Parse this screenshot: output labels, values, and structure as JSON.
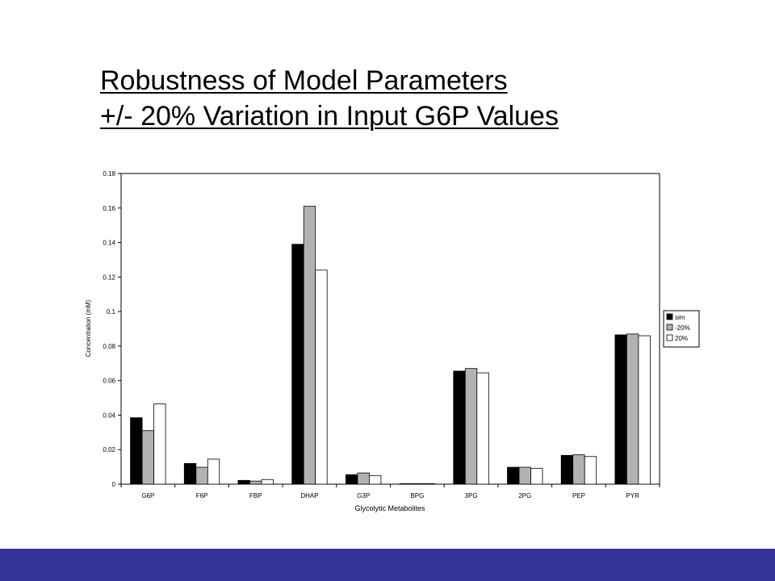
{
  "slide": {
    "title_line1": "Robustness of Model Parameters",
    "title_line2": "+/- 20% Variation in Input G6P Values",
    "footer_color": "#333399"
  },
  "chart_data": {
    "type": "bar",
    "title": "",
    "xlabel": "Glycolytic Metabolites",
    "ylabel": "Concentration (mM)",
    "ylim": [
      0,
      0.18
    ],
    "yticks": [
      "0",
      "0.02",
      "0.04",
      "0.06",
      "0.08",
      "0.1",
      "0.12",
      "0.14",
      "0.16",
      "0.18"
    ],
    "categories": [
      "G6P",
      "F6P",
      "FBP",
      "DHAP",
      "G3P",
      "BPG",
      "3PG",
      "2PG",
      "PEP",
      "PYR"
    ],
    "series": [
      {
        "name": "sim",
        "color": "#000000",
        "values": [
          0.0385,
          0.012,
          0.0022,
          0.139,
          0.0055,
          0.0003,
          0.0655,
          0.0098,
          0.0167,
          0.0865
        ]
      },
      {
        "name": "-20%",
        "color": "#b2b2b2",
        "values": [
          0.031,
          0.0098,
          0.0018,
          0.161,
          0.0065,
          0.0003,
          0.067,
          0.0098,
          0.017,
          0.087
        ]
      },
      {
        "name": "20%",
        "color": "#ffffff",
        "values": [
          0.0465,
          0.0145,
          0.0027,
          0.124,
          0.005,
          0.0003,
          0.0645,
          0.0092,
          0.016,
          0.086
        ]
      }
    ],
    "grid": false,
    "legend_position": "right"
  }
}
